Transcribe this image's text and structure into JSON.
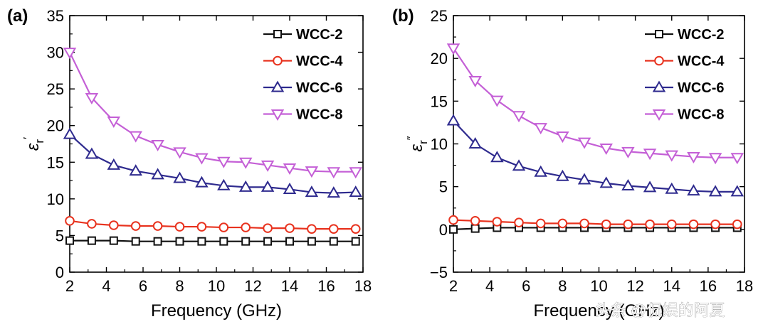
{
  "chart_data": [
    {
      "type": "line",
      "panel_label": "(a)",
      "xlabel": "Frequency (GHz)",
      "ylabel_symbol": "ε",
      "ylabel_sub": "r",
      "ylabel_prime": "′",
      "xlim": [
        2,
        18
      ],
      "ylim": [
        0,
        35
      ],
      "xticks": [
        2,
        4,
        6,
        8,
        10,
        12,
        14,
        16,
        18
      ],
      "yticks": [
        0,
        5,
        10,
        15,
        20,
        25,
        30,
        35
      ],
      "x": [
        2,
        3.2,
        4.4,
        5.6,
        6.8,
        8.0,
        9.2,
        10.4,
        11.6,
        12.8,
        14.0,
        15.2,
        16.4,
        17.6
      ],
      "legend_position": "top-right",
      "series": [
        {
          "name": "WCC-2",
          "marker": "square",
          "color": "#111111",
          "values": [
            4.3,
            4.3,
            4.3,
            4.2,
            4.2,
            4.2,
            4.2,
            4.2,
            4.2,
            4.2,
            4.2,
            4.2,
            4.2,
            4.2
          ]
        },
        {
          "name": "WCC-4",
          "marker": "circle",
          "color": "#e8321e",
          "values": [
            7.0,
            6.6,
            6.4,
            6.3,
            6.3,
            6.2,
            6.2,
            6.1,
            6.1,
            6.0,
            6.0,
            5.9,
            5.9,
            5.9
          ]
        },
        {
          "name": "WCC-6",
          "marker": "triangle-up",
          "color": "#2e2a8e",
          "values": [
            18.8,
            16.1,
            14.6,
            13.8,
            13.3,
            12.8,
            12.2,
            11.8,
            11.6,
            11.6,
            11.3,
            10.9,
            10.8,
            10.9
          ]
        },
        {
          "name": "WCC-8",
          "marker": "triangle-down",
          "color": "#c45fd6",
          "values": [
            30.0,
            23.8,
            20.6,
            18.6,
            17.4,
            16.4,
            15.6,
            15.1,
            15.0,
            14.6,
            14.2,
            13.8,
            13.7,
            13.7
          ]
        }
      ]
    },
    {
      "type": "line",
      "panel_label": "(b)",
      "xlabel": "Frequency (GHz)",
      "ylabel_symbol": "ε",
      "ylabel_sub": "r",
      "ylabel_prime": "″",
      "xlim": [
        2,
        18
      ],
      "ylim": [
        -5,
        25
      ],
      "xticks": [
        2,
        4,
        6,
        8,
        10,
        12,
        14,
        16,
        18
      ],
      "yticks": [
        -5,
        0,
        5,
        10,
        15,
        20,
        25
      ],
      "x": [
        2,
        3.2,
        4.4,
        5.6,
        6.8,
        8.0,
        9.2,
        10.4,
        11.6,
        12.8,
        14.0,
        15.2,
        16.4,
        17.6
      ],
      "legend_position": "top-right",
      "series": [
        {
          "name": "WCC-2",
          "marker": "square",
          "color": "#111111",
          "values": [
            0.0,
            0.1,
            0.2,
            0.2,
            0.2,
            0.2,
            0.2,
            0.2,
            0.2,
            0.2,
            0.2,
            0.2,
            0.2,
            0.2
          ]
        },
        {
          "name": "WCC-4",
          "marker": "circle",
          "color": "#e8321e",
          "values": [
            1.1,
            1.0,
            0.9,
            0.8,
            0.7,
            0.7,
            0.7,
            0.6,
            0.6,
            0.6,
            0.6,
            0.6,
            0.6,
            0.6
          ]
        },
        {
          "name": "WCC-6",
          "marker": "triangle-up",
          "color": "#2e2a8e",
          "values": [
            12.7,
            10.0,
            8.4,
            7.4,
            6.7,
            6.2,
            5.8,
            5.4,
            5.1,
            4.9,
            4.7,
            4.5,
            4.4,
            4.4
          ]
        },
        {
          "name": "WCC-8",
          "marker": "triangle-down",
          "color": "#c45fd6",
          "values": [
            21.2,
            17.4,
            15.1,
            13.3,
            11.9,
            10.9,
            10.2,
            9.5,
            9.1,
            8.9,
            8.7,
            8.5,
            8.4,
            8.4
          ]
        }
      ]
    }
  ],
  "watermark": "头条 @侃娱的阿夏"
}
